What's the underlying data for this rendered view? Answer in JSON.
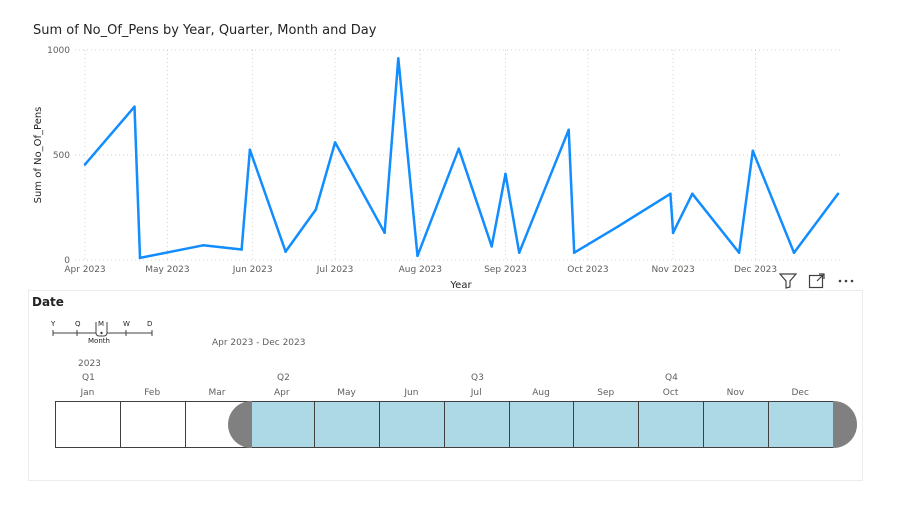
{
  "chart": {
    "title": "Sum of No_Of_Pens by Year, Quarter, Month and Day"
  },
  "chart_data": {
    "type": "line",
    "title": "Sum of No_Of_Pens by Year, Quarter, Month and Day",
    "xlabel": "Year",
    "ylabel": "Sum of No_Of_Pens",
    "ylim": [
      0,
      1000
    ],
    "yticks": [
      0,
      500,
      1000
    ],
    "xlim": [
      "2023-04-01",
      "2023-12-31"
    ],
    "xticks": [
      "Apr 2023",
      "May 2023",
      "Jun 2023",
      "Jul 2023",
      "Aug 2023",
      "Sep 2023",
      "Oct 2023",
      "Nov 2023",
      "Dec 2023"
    ],
    "xtick_dates": [
      "2023-04-01",
      "2023-05-01",
      "2023-06-01",
      "2023-07-01",
      "2023-08-01",
      "2023-09-01",
      "2023-10-01",
      "2023-11-01",
      "2023-12-01"
    ],
    "grid": true,
    "line_color": "#118dff",
    "series": [
      {
        "x": [
          "2023-04-01",
          "2023-04-19",
          "2023-04-21",
          "2023-05-14",
          "2023-05-28",
          "2023-05-31",
          "2023-06-13",
          "2023-06-24",
          "2023-07-01",
          "2023-07-19",
          "2023-07-24",
          "2023-07-31",
          "2023-08-15",
          "2023-08-27",
          "2023-09-01",
          "2023-09-06",
          "2023-09-24",
          "2023-09-26",
          "2023-10-12",
          "2023-10-31",
          "2023-11-01",
          "2023-11-08",
          "2023-11-25",
          "2023-11-30",
          "2023-12-15",
          "2023-12-31"
        ],
        "y": [
          455,
          730,
          10,
          70,
          50,
          525,
          40,
          240,
          560,
          130,
          960,
          20,
          530,
          65,
          410,
          35,
          620,
          35,
          160,
          315,
          130,
          315,
          35,
          520,
          35,
          315
        ]
      }
    ]
  },
  "visual_header": {
    "icons": [
      "filter-icon",
      "focus-mode-icon",
      "more-options-icon"
    ]
  },
  "slicer": {
    "title": "Date",
    "granularity_levels": [
      "Y",
      "Q",
      "M",
      "W",
      "D"
    ],
    "granularity_selected": "M",
    "granularity_label": "Month",
    "range_label": "Apr 2023 - Dec 2023",
    "year": "2023",
    "quarters": [
      "Q1",
      "Q2",
      "Q3",
      "Q4"
    ],
    "months": [
      "Jan",
      "Feb",
      "Mar",
      "Apr",
      "May",
      "Jun",
      "Jul",
      "Aug",
      "Sep",
      "Oct",
      "Nov",
      "Dec"
    ],
    "selected_range": [
      "Apr",
      "Dec"
    ],
    "selected_color": "#add8e6",
    "handle_color": "#808080"
  }
}
